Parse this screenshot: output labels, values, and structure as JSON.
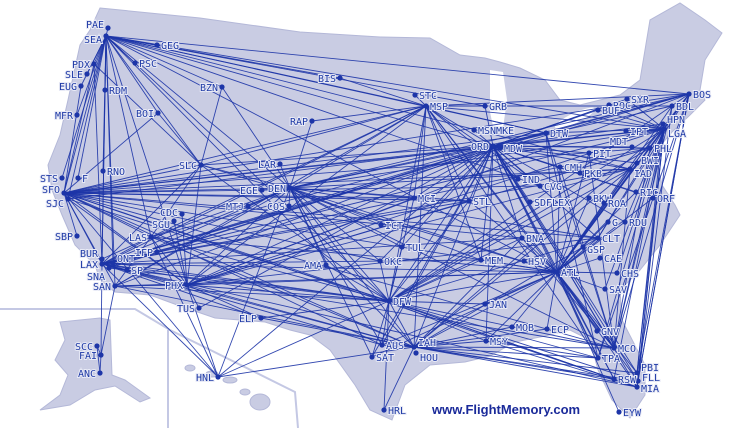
{
  "map": {
    "watermark": "www.FlightMemory.com",
    "colors": {
      "land": "#c9cce3",
      "route": "#1d35a8",
      "label": "#1f3aa6"
    },
    "airports": [
      "PAE",
      "SEA",
      "GEG",
      "PDX",
      "PSC",
      "SLE",
      "RDM",
      "EUG",
      "BZN",
      "BIS",
      "RAP",
      "MFR",
      "BOI",
      "STC",
      "MSP",
      "GRB",
      "ROC",
      "SYR",
      "BOS",
      "BDL",
      "BUF",
      "MSNMKE",
      "DTW",
      "ORD",
      "MDW",
      "IPT",
      "HPN",
      "LGA",
      "PHL",
      "MDT",
      "PIT",
      "BWI",
      "IAD",
      "CMH",
      "PKB",
      "IND",
      "CVG",
      "RIC",
      "ORF",
      "BKW",
      "ROA",
      "SDFLEX",
      "STL",
      "MCI",
      "G",
      "RDU",
      "CLT",
      "GSP",
      "BNA",
      "CAE",
      "CHS",
      "SAV",
      "ATL",
      "HSV",
      "MEM",
      "TUL",
      "OKC",
      "ICT",
      "DFW",
      "JAN",
      "MOB",
      "ECP",
      "GNV",
      "MCO",
      "TPA",
      "MSY",
      "AUS",
      "IAH",
      "HOU",
      "SAT",
      "HRL",
      "PBI",
      "FLL",
      "MIA",
      "RSW",
      "EYW",
      "STS",
      "F",
      "RNO",
      "SFO",
      "SJC",
      "SLC",
      "LAR",
      "EGE",
      "DEN",
      "MTJ",
      "COS",
      "CDC",
      "SGU",
      "LAS",
      "IFP",
      "SBP",
      "BUR",
      "LAX",
      "ONT",
      "SNA",
      "SP",
      "SAN",
      "PHX",
      "TUS",
      "ELP",
      "AMA",
      "SCC",
      "FAI",
      "ANC",
      "HNL"
    ],
    "routes": [
      "SEA-GEG",
      "SEA-PDX",
      "SEA-SFO",
      "SEA-LAX",
      "SEA-SJC",
      "SEA-SLC",
      "SEA-DEN",
      "SEA-ORD",
      "SEA-MSP",
      "SEA-BOS",
      "SEA-LGA",
      "SEA-ATL",
      "SEA-DFW",
      "SEA-PHX",
      "SEA-LAS",
      "SEA-SAN",
      "SEA-BUR",
      "SEA-ONT",
      "SEA-BZN",
      "SEA-BOI",
      "SEA-PSC",
      "SEA-RNO",
      "SEA-STS",
      "SEA-F",
      "SEA-EUG",
      "SEA-MFR",
      "SEA-RDM",
      "SEA-IAD",
      "SEA-DTW",
      "SEA-BIS",
      "SEA-CVG",
      "SEA-IAH",
      "SEA-GRB",
      "SEA-PAE",
      "SEA-SLE",
      "SFO-LAX",
      "SFO-SAN",
      "SFO-DEN",
      "SFO-ORD",
      "SFO-DFW",
      "SFO-IAH",
      "SFO-ATL",
      "SFO-LGA",
      "SFO-IAD",
      "SFO-BOS",
      "SFO-PHX",
      "SFO-LAS",
      "SFO-SLC",
      "SFO-MSP",
      "SFO-STL",
      "SFO-MCI",
      "SFO-BNA",
      "SFO-CLT",
      "SFO-MCO",
      "SFO-MIA",
      "SFO-HNL",
      "SFO-SBP",
      "SFO-PDX",
      "SFO-EUG",
      "SFO-BOI",
      "SFO-PHL",
      "SFO-DTW",
      "SFO-CVG",
      "SFO-OKC",
      "SFO-AUS",
      "SJC-DFW",
      "SJC-PHX",
      "SJC-ORD",
      "LAX-ORD",
      "LAX-DFW",
      "LAX-IAH",
      "LAX-ATL",
      "LAX-LGA",
      "LAX-BOS",
      "LAX-DEN",
      "LAX-PHX",
      "LAX-LAS",
      "LAX-SLC",
      "LAX-MSP",
      "LAX-HNL",
      "LAX-STL",
      "LAX-MCO",
      "LAX-MIA",
      "LAX-PHL",
      "LAX-IAD",
      "LAX-DTW",
      "LAX-MEM",
      "LAX-BNA",
      "LAX-AUS",
      "LAX-ELP",
      "LAX-FAI",
      "FAI-SCC",
      "FAI-ANC",
      "SCC-ANC",
      "LAX-PDX",
      "DEN-ORD",
      "DEN-DFW",
      "DEN-IAH",
      "DEN-ATL",
      "DEN-LGA",
      "DEN-MSP",
      "DEN-STL",
      "DEN-MCI",
      "DEN-PHX",
      "DEN-LAS",
      "DEN-SLC",
      "DEN-BZN",
      "DEN-EGE",
      "DEN-MTJ",
      "DEN-COS",
      "DEN-LAR",
      "DEN-RAP",
      "DEN-HNL",
      "DEN-IAD",
      "DEN-CLT",
      "DEN-MCO",
      "DEN-BOS",
      "DEN-DTW",
      "DEN-OKC",
      "DEN-TUL",
      "DEN-ICT",
      "DEN-AMA",
      "DEN-SAT",
      "DEN-AUS",
      "DEN-MEM",
      "DEN-SNA",
      "DEN-SAN",
      "ORD-LGA",
      "ORD-BOS",
      "ORD-IAD",
      "ORD-PHL",
      "ORD-ATL",
      "ORD-DFW",
      "ORD-IAH",
      "ORD-MSP",
      "ORD-STL",
      "ORD-MCI",
      "ORD-MCO",
      "ORD-MIA",
      "ORD-TPA",
      "ORD-FLL",
      "ORD-PBI",
      "ORD-RSW",
      "ORD-CLT",
      "ORD-RDU",
      "ORD-BNA",
      "ORD-MEM",
      "ORD-MSY",
      "ORD-AUS",
      "ORD-SAT",
      "ORD-PHX",
      "ORD-LAS",
      "ORD-SLC",
      "ORD-SAN",
      "ORD-SNA",
      "ORD-DTW",
      "ORD-CMH",
      "ORD-PIT",
      "ORD-BUF",
      "ORD-ROC",
      "ORD-SYR",
      "ORD-BDL",
      "ORD-HPN",
      "ORD-MDT",
      "ORD-BWI",
      "ORD-RIC",
      "ORD-ORF",
      "ORD-CVG",
      "ORD-SDFLEX",
      "ORD-IND",
      "ORD-GRB",
      "ORD-MSNMKE",
      "ORD-TUL",
      "ORD-OKC",
      "ORD-HNL",
      "ORD-IFP",
      "ORD-PSP",
      "ORD-TUS",
      "MSP-STC",
      "MSP-LGA",
      "MSP-BOS",
      "MSP-DTW",
      "MSP-ATL",
      "MSP-DFW",
      "MSP-PHX",
      "MSP-LAS",
      "MSP-SLC",
      "MSP-MCI",
      "MSP-STL",
      "MSP-IAH",
      "MSP-MCO",
      "MSP-TPA",
      "MSP-BDL",
      "MSP-GRB",
      "MSP-BIS",
      "MSP-RAP",
      "MSP-MEM",
      "MSP-IND",
      "MSP-CVG",
      "MSP-SAN",
      "MSP-SEA",
      "DFW-ATL",
      "DFW-LGA",
      "DFW-IAD",
      "DFW-MIA",
      "DFW-MCO",
      "DFW-IAH",
      "DFW-AUS",
      "DFW-SAT",
      "DFW-HRL",
      "DFW-MSY",
      "DFW-PHX",
      "DFW-LAS",
      "DFW-SAN",
      "DFW-SLC",
      "DFW-HNL",
      "DFW-ELP",
      "DFW-AMA",
      "DFW-OKC",
      "DFW-TUL",
      "DFW-MEM",
      "DFW-BNA",
      "DFW-CLT",
      "DFW-TPA",
      "DFW-RSW",
      "DFW-FLL",
      "DFW-JAN",
      "DFW-STL",
      "DFW-MCI",
      "DFW-BOS",
      "DFW-PHL",
      "DFW-SNA",
      "DFW-ONT",
      "IAH-ATL",
      "IAH-LGA",
      "IAH-IAD",
      "IAH-MCO",
      "IAH-TPA",
      "IAH-MIA",
      "IAH-MSY",
      "IAH-MOB",
      "IAH-ECP",
      "IAH-PHX",
      "IAH-LAS",
      "IAH-SAN",
      "IAH-HNL",
      "IAH-ELP",
      "IAH-AUS",
      "IAH-HRL",
      "IAH-BNA",
      "IAH-CLT",
      "IAH-RSW",
      "IAH-FLL",
      "IAH-PBI",
      "ATL-LGA",
      "ATL-BOS",
      "ATL-IAD",
      "ATL-PHL",
      "ATL-MCO",
      "ATL-TPA",
      "ATL-MIA",
      "ATL-FLL",
      "ATL-PBI",
      "ATL-RSW",
      "ATL-EYW",
      "ATL-GNV",
      "ATL-SAV",
      "ATL-CHS",
      "ATL-CAE",
      "ATL-CLT",
      "ATL-GSP",
      "ATL-RDU",
      "ATL-G",
      "ATL-ROA",
      "ATL-BKW",
      "ATL-RIC",
      "ATL-ORF",
      "ATL-BWI",
      "ATL-PIT",
      "ATL-CMH",
      "ATL-DTW",
      "ATL-BNA",
      "ATL-MEM",
      "ATL-HSV",
      "ATL-MSY",
      "ATL-MOB",
      "ATL-ECP",
      "ATL-JAN",
      "ATL-STL",
      "ATL-PHX",
      "ATL-LAS",
      "ATL-SAN",
      "ATL-SLC",
      "ATL-AUS",
      "ATL-SAT",
      "ATL-BDL",
      "ATL-HPN",
      "PHX-LAS",
      "PHX-SAN",
      "PHX-TUS",
      "PHX-HNL",
      "PHX-ELP",
      "PHX-LGA",
      "PHX-IAD",
      "PHX-PHL",
      "PHX-STL",
      "PHX-MCI",
      "PHX-SLC",
      "PHX-BOS",
      "PHX-CLT",
      "PHX-SGU",
      "PHX-CDC",
      "LGA-BOS",
      "LGA-MCO",
      "LGA-MIA",
      "LGA-FLL",
      "LGA-PBI",
      "LGA-TPA",
      "LGA-RSW",
      "LGA-CLT",
      "LGA-RDU",
      "LGA-DTW",
      "LGA-SYR",
      "LGA-ROC",
      "LGA-BUF",
      "LGA-CHS",
      "LGA-SAV",
      "BOS-MCO",
      "BOS-FLL",
      "BOS-PBI",
      "BOS-MIA",
      "BOS-TPA",
      "BOS-IAD",
      "BOS-PHL",
      "BOS-CLT",
      "BOS-DTW",
      "BDL-MCO",
      "BDL-FLL",
      "HPN-PBI",
      "IAD-MCO",
      "PHL-MCO",
      "DTW-MCO",
      "DTW-TPA",
      "PIT-MCO",
      "CMH-MCO",
      "SLC-LAS",
      "SLC-BOI",
      "SLC-BZN",
      "SLC-PDX",
      "LAS-SAN",
      "LAS-BUR",
      "HNL-LAX",
      "HNL-LAS",
      "MSY-MIA",
      "MSY-TPA",
      "BNA-MCO",
      "SAN-FAI"
    ]
  }
}
